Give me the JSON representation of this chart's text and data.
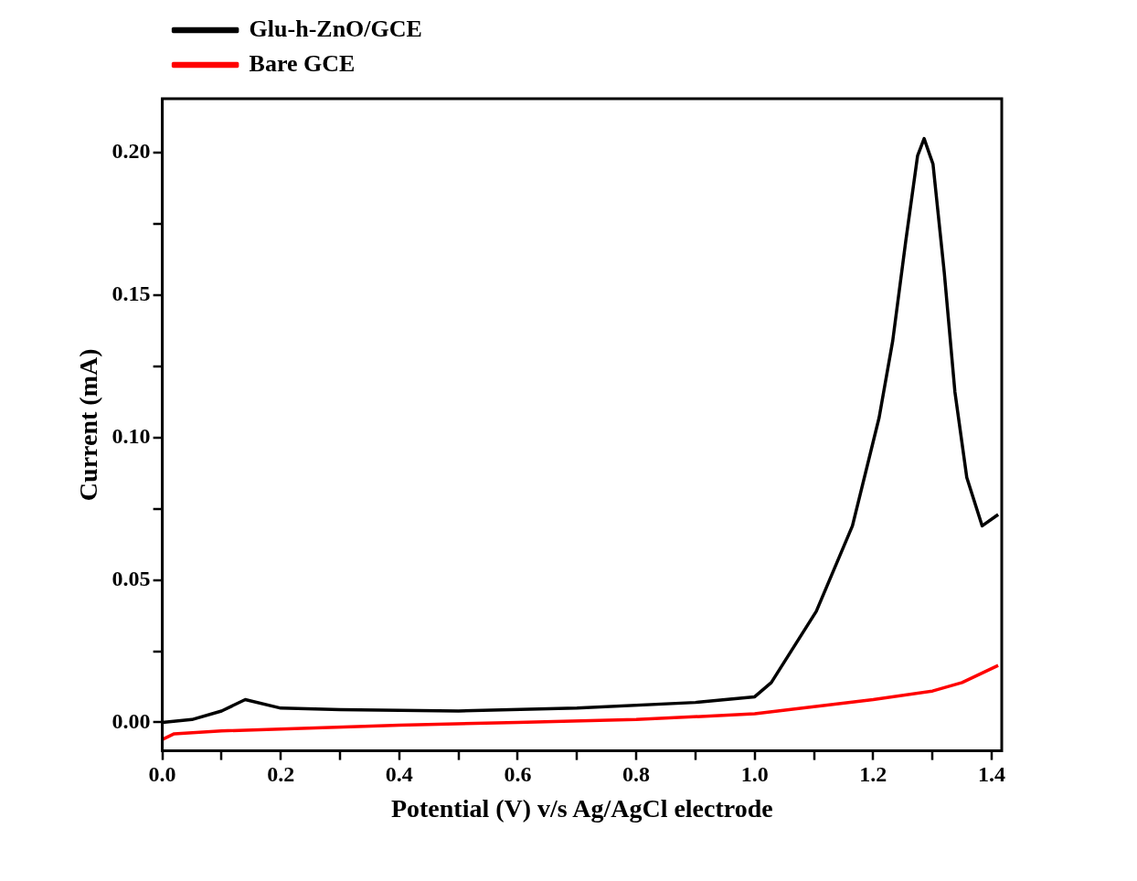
{
  "chart_data": {
    "type": "line",
    "xlabel": "Potential (V) v/s Ag/AgCl electrode",
    "ylabel": "Current (mA)",
    "xlim": [
      0,
      1.417
    ],
    "ylim": [
      -0.01,
      0.219
    ],
    "xticks": [
      {
        "value": 0,
        "label": "0.0"
      },
      {
        "value": 0.1,
        "label": null
      },
      0.2,
      {
        "value": 0.3,
        "label": null
      },
      0.4,
      {
        "value": 0.5,
        "label": null
      },
      0.6,
      {
        "value": 0.7,
        "label": null
      },
      0.8,
      {
        "value": 0.9,
        "label": null
      },
      {
        "value": 1,
        "label": "1.0"
      },
      {
        "value": 1.1,
        "label": null
      },
      1.2,
      {
        "value": 1.3,
        "label": null
      },
      1.4
    ],
    "yticks": [
      {
        "value": 0,
        "label": "0.00"
      },
      {
        "value": 0.025,
        "label": null
      },
      0.05,
      {
        "value": 0.075,
        "label": null
      },
      {
        "value": 0.1,
        "label": "0.10"
      },
      {
        "value": 0.125,
        "label": null
      },
      0.15,
      {
        "value": 0.175,
        "label": null
      },
      {
        "value": 0.2,
        "label": "0.20"
      }
    ],
    "grid": false,
    "legend": "top left",
    "marker": "none",
    "line_style": "solid",
    "series": [
      {
        "name": "Glu-h-ZnO/GCE",
        "color": "#000000",
        "x": [
          0,
          0.05,
          0.1,
          0.14,
          0.2,
          0.3,
          0.5,
          0.7,
          0.9,
          1.0,
          1.028,
          1.104,
          1.165,
          1.21,
          1.233,
          1.255,
          1.275,
          1.286,
          1.301,
          1.32,
          1.338,
          1.358,
          1.384,
          1.411
        ],
        "values": [
          0,
          0.001,
          0.004,
          0.008,
          0.005,
          0.0045,
          0.004,
          0.005,
          0.007,
          0.009,
          0.014,
          0.039,
          0.069,
          0.107,
          0.134,
          0.169,
          0.199,
          0.205,
          0.196,
          0.158,
          0.116,
          0.086,
          0.069,
          0.073
        ]
      },
      {
        "name": "Bare GCE",
        "color": "#ff0000",
        "x": [
          0,
          0.02,
          0.1,
          0.4,
          0.6,
          0.8,
          1.0,
          1.2,
          1.3,
          1.35,
          1.411
        ],
        "values": [
          -0.006,
          -0.004,
          -0.003,
          -0.001,
          0,
          0.001,
          0.003,
          0.008,
          0.011,
          0.014,
          0.02
        ]
      }
    ]
  }
}
